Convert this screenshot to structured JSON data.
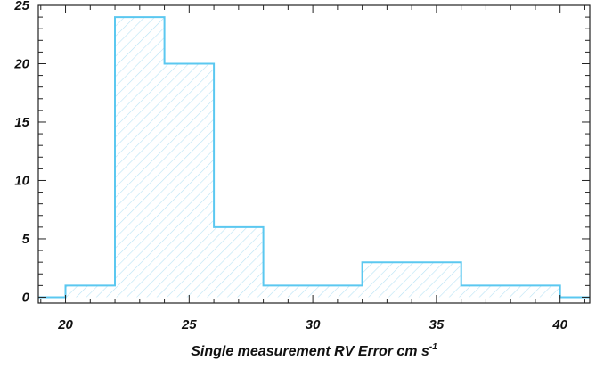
{
  "chart_data": {
    "type": "bar",
    "bins": [
      {
        "x0": 18,
        "x1": 20,
        "value": 0
      },
      {
        "x0": 20,
        "x1": 22,
        "value": 1
      },
      {
        "x0": 22,
        "x1": 24,
        "value": 24
      },
      {
        "x0": 24,
        "x1": 26,
        "value": 20
      },
      {
        "x0": 26,
        "x1": 28,
        "value": 6
      },
      {
        "x0": 28,
        "x1": 32,
        "value": 1
      },
      {
        "x0": 32,
        "x1": 36,
        "value": 3
      },
      {
        "x0": 36,
        "x1": 40,
        "value": 1
      },
      {
        "x0": 40,
        "x1": 42,
        "value": 0
      }
    ],
    "xlim": [
      18.9,
      41.2
    ],
    "ylim": [
      -0.5,
      25
    ],
    "xticks": [
      20,
      25,
      30,
      35,
      40
    ],
    "yticks": [
      0,
      5,
      10,
      15,
      20,
      25
    ],
    "xlabel": "Single measurement RV Error cm s",
    "xlabel_sup": "-1",
    "ylabel": "",
    "grid": false,
    "bar_color": "#5bc8f0",
    "hatch_color": "#b8e2f4"
  }
}
